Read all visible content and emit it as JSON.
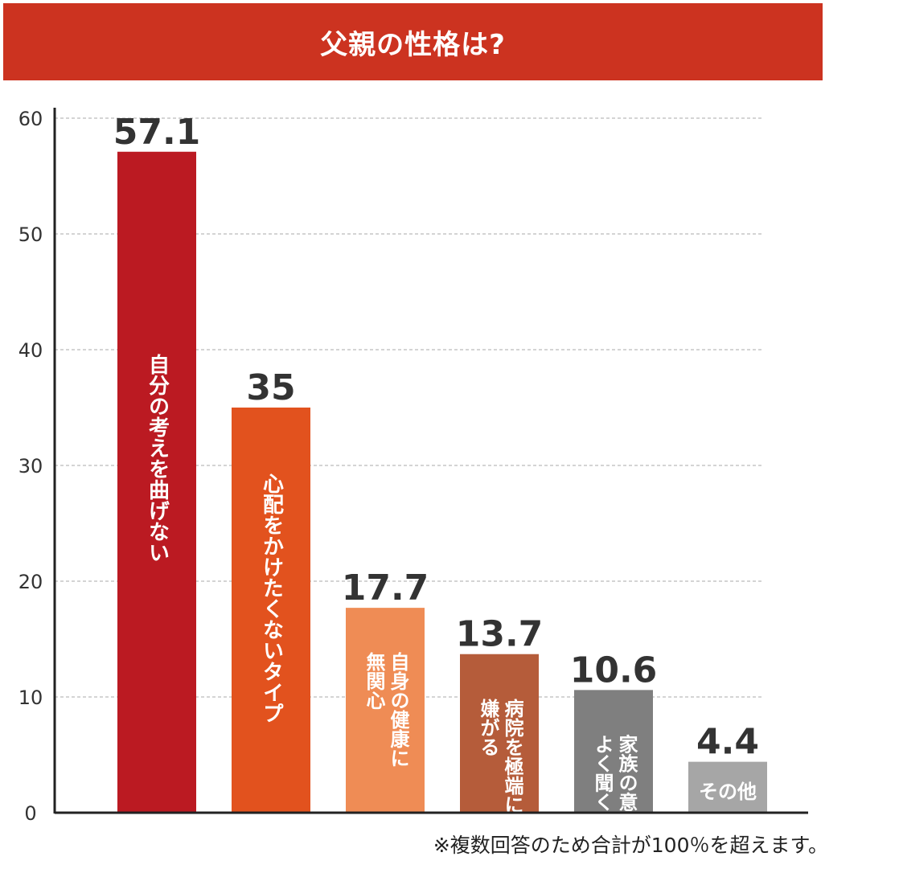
{
  "header": {
    "title": "父親の性格は?"
  },
  "footnote": "※複数回答のため合計が100％を超えます。",
  "colors": {
    "title_bar": "#cc3320",
    "bars": [
      "#bb1a22",
      "#e2521e",
      "#ef8c55",
      "#b55c3a",
      "#7f7f7f",
      "#a6a6a6"
    ]
  },
  "chart_data": {
    "type": "bar",
    "title": "父親の性格は?",
    "categories": [
      "自分の考えを曲げない",
      "心配をかけたくないタイプ",
      "自身の健康に無関心",
      "病院を極端に嫌がる",
      "家族の意見をよく聞く",
      "その他"
    ],
    "category_lines": [
      [
        "自分の考えを曲げない"
      ],
      [
        "心配をかけたくないタイプ"
      ],
      [
        "自身の健康に",
        "無関心"
      ],
      [
        "病院を極端に",
        "嫌がる"
      ],
      [
        "家族の意見を",
        "よく聞く"
      ],
      [
        "その他"
      ]
    ],
    "values": [
      57.1,
      35,
      17.7,
      13.7,
      10.6,
      4.4
    ],
    "value_labels": [
      "57.1",
      "35",
      "17.7",
      "13.7",
      "10.6",
      "4.4"
    ],
    "ylim": [
      0,
      60
    ],
    "yticks": [
      0,
      10,
      20,
      30,
      40,
      50,
      60
    ],
    "grid": true
  }
}
